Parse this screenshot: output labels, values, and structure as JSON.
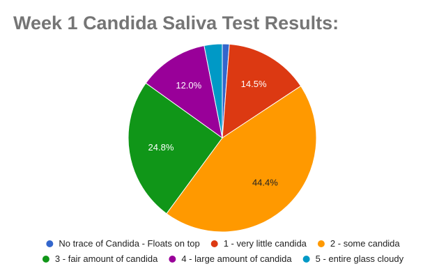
{
  "chart_data": {
    "type": "pie",
    "title": "Week 1 Candida Saliva Test Results:",
    "slices": [
      {
        "label": "No trace of Candida - Floats on top",
        "value": 1.2,
        "display": "",
        "color": "#3366cc",
        "label_color": "#ffffff"
      },
      {
        "label": "1 - very little candida",
        "value": 14.5,
        "display": "14.5%",
        "color": "#dc3912",
        "label_color": "#ffffff"
      },
      {
        "label": "2 - some candida",
        "value": 44.4,
        "display": "44.4%",
        "color": "#ff9900",
        "label_color": "#222222"
      },
      {
        "label": "3 - fair amount of candida",
        "value": 24.8,
        "display": "24.8%",
        "color": "#109618",
        "label_color": "#ffffff"
      },
      {
        "label": "4 - large amount of candida",
        "value": 12.0,
        "display": "12.0%",
        "color": "#990099",
        "label_color": "#ffffff"
      },
      {
        "label": "5 - entire glass cloudy",
        "value": 3.1,
        "display": "",
        "color": "#0099c6",
        "label_color": "#ffffff"
      }
    ],
    "start_angle_deg": 0,
    "direction": "clockwise",
    "legend_position": "bottom"
  }
}
